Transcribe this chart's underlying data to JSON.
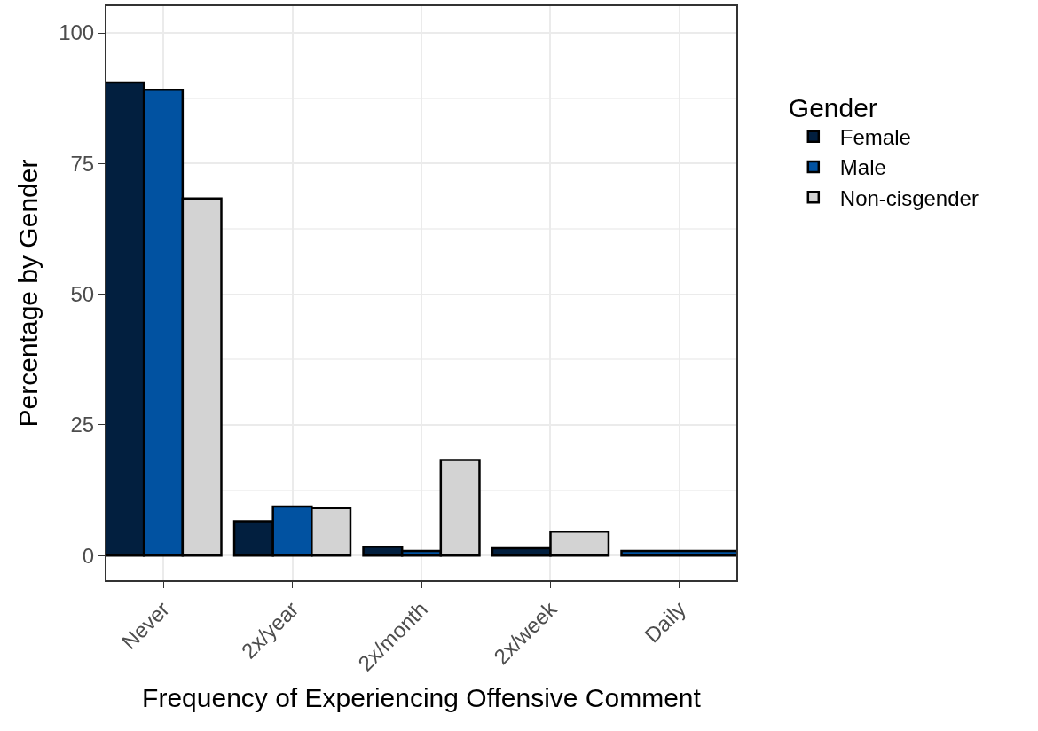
{
  "chart_data": {
    "type": "bar",
    "xlabel": "Frequency of Experiencing Offensive Comment",
    "ylabel": "Percentage by Gender",
    "legend_title": "Gender",
    "categories": [
      "Never",
      "2x/year",
      "2x/month",
      "2x/week",
      "Daily"
    ],
    "series": [
      {
        "name": "Female",
        "color": "#021f3f",
        "values": [
          90.5,
          6.6,
          1.7,
          1.4,
          null
        ]
      },
      {
        "name": "Male",
        "color": "#0152a1",
        "values": [
          89.1,
          9.4,
          0.9,
          null,
          0.9
        ]
      },
      {
        "name": "Non-cisgender",
        "color": "#d3d3d3",
        "values": [
          68.3,
          9.1,
          18.3,
          4.6,
          null
        ]
      }
    ],
    "ylim": [
      -4.7,
      105.1
    ],
    "yticks": [
      0,
      25,
      50,
      75,
      100
    ],
    "grid": true,
    "legend": "right"
  }
}
